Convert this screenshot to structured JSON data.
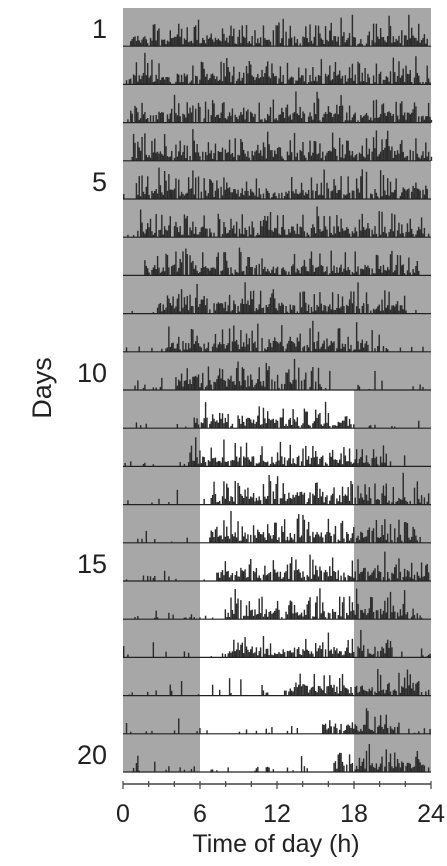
{
  "chart_data": {
    "type": "actogram",
    "title": "",
    "xlabel": "Time of day (h)",
    "ylabel": "Days",
    "xlim": [
      0,
      24
    ],
    "x_ticks": [
      0,
      6,
      12,
      18,
      24
    ],
    "x_tick_labels": [
      "0",
      "6",
      "12",
      "18",
      "24"
    ],
    "days": [
      1,
      2,
      3,
      4,
      5,
      6,
      7,
      8,
      9,
      10,
      11,
      12,
      13,
      14,
      15,
      16,
      17,
      18,
      19,
      20
    ],
    "y_tick_labels": [
      {
        "day": 1,
        "label": "1"
      },
      {
        "day": 5,
        "label": "5"
      },
      {
        "day": 10,
        "label": "10"
      },
      {
        "day": 15,
        "label": "15"
      },
      {
        "day": 20,
        "label": "20"
      }
    ],
    "lighting": [
      {
        "days": [
          1,
          10
        ],
        "dark": [
          [
            0,
            24
          ]
        ]
      },
      {
        "days": [
          11,
          20
        ],
        "dark": [
          [
            0,
            6
          ],
          [
            18,
            24
          ]
        ],
        "light": [
          [
            6,
            18
          ]
        ]
      }
    ],
    "activity_onsets_h": [
      0.5,
      0.4,
      0.3,
      0.6,
      0.8,
      1.0,
      1.6,
      2.6,
      3.3,
      4.0,
      5.5,
      5.0,
      6.8,
      6.5,
      7.2,
      7.8,
      8.0,
      12.5,
      15.4,
      16.2
    ],
    "activity_offsets_h": [
      23.8,
      23.9,
      23.9,
      23.8,
      23.7,
      23.5,
      23.0,
      22.0,
      20.0,
      15.5,
      18.0,
      20.5,
      23.5,
      23.0,
      23.8,
      23.0,
      21.0,
      23.0,
      21.5,
      23.5
    ],
    "colors": {
      "dark_phase": "#a7a7a7",
      "light_phase": "#ffffff",
      "activity": "#2b2b2b",
      "baseline": "#222222"
    }
  }
}
